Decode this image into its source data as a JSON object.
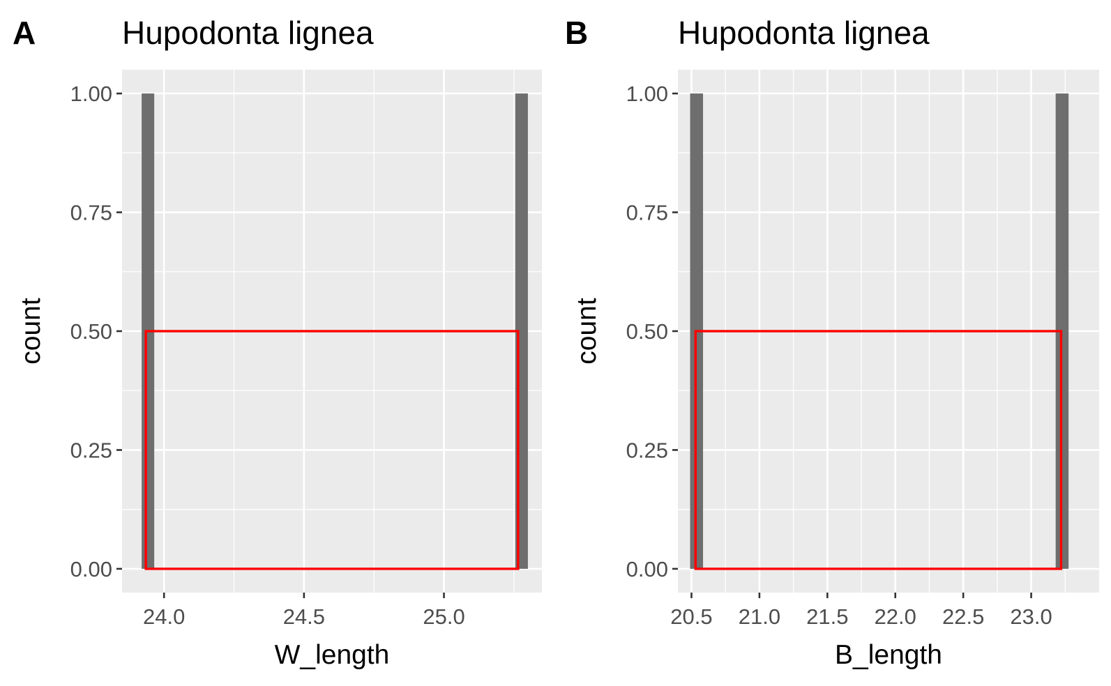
{
  "chart_data": [
    {
      "type": "bar",
      "panel_tag": "A",
      "title": "Hupodonta lignea",
      "xlabel": "W_length",
      "ylabel": "count",
      "xlim": [
        23.85,
        25.35
      ],
      "ylim": [
        -0.05,
        1.05
      ],
      "x_ticks": [
        24.0,
        24.5,
        25.0
      ],
      "x_tick_labels": [
        "24.0",
        "24.5",
        "25.0"
      ],
      "y_ticks": [
        0,
        0.25,
        0.5,
        0.75,
        1.0
      ],
      "y_tick_labels": [
        "0.00",
        "0.25",
        "0.50",
        "0.75",
        "1.00"
      ],
      "grid": true,
      "bar_color": "#6e6e6e",
      "bars": [
        {
          "x_start": 23.92,
          "x_end": 23.965,
          "count": 1
        },
        {
          "x_start": 25.255,
          "x_end": 25.3,
          "count": 1
        }
      ],
      "highlight_rect": {
        "x0": 23.935,
        "x1": 25.265,
        "y0": 0,
        "y1": 0.5,
        "color": "#ff0000"
      }
    },
    {
      "type": "bar",
      "panel_tag": "B",
      "title": "Hupodonta lignea",
      "xlabel": "B_length",
      "ylabel": "count",
      "xlim": [
        20.4,
        23.5
      ],
      "ylim": [
        -0.05,
        1.05
      ],
      "x_ticks": [
        20.5,
        21.0,
        21.5,
        22.0,
        22.5,
        23.0
      ],
      "x_tick_labels": [
        "20.5",
        "21.0",
        "21.5",
        "22.0",
        "22.5",
        "23.0"
      ],
      "y_ticks": [
        0,
        0.25,
        0.5,
        0.75,
        1.0
      ],
      "y_tick_labels": [
        "0.00",
        "0.25",
        "0.50",
        "0.75",
        "1.00"
      ],
      "grid": true,
      "bar_color": "#6e6e6e",
      "bars": [
        {
          "x_start": 20.49,
          "x_end": 20.585,
          "count": 1
        },
        {
          "x_start": 23.18,
          "x_end": 23.275,
          "count": 1
        }
      ],
      "highlight_rect": {
        "x0": 20.53,
        "x1": 23.22,
        "y0": 0,
        "y1": 0.5,
        "color": "#ff0000"
      }
    }
  ]
}
